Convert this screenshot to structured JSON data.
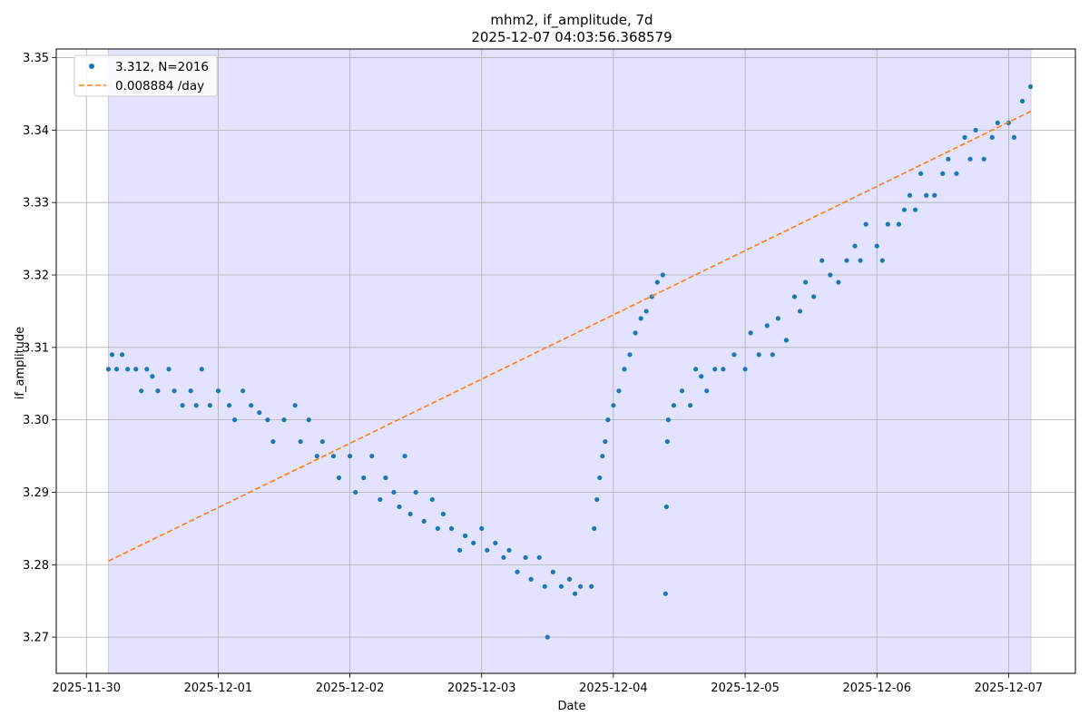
{
  "chart_data": {
    "type": "scatter",
    "title": "mhm2, if_amplitude, 7d",
    "subtitle": "2025-12-07 04:03:56.368579",
    "xlabel": "Date",
    "ylabel": "if_amplitude",
    "x_range_days": [
      "2025-11-29T18:30",
      "2025-12-07T12:10"
    ],
    "ylim": [
      3.265,
      3.3512
    ],
    "grid": true,
    "legend_position": "top-left",
    "shaded_span": [
      "2025-11-30T04:00",
      "2025-12-07T04:04"
    ],
    "colors": {
      "points": "#1f77b4",
      "fit": "#ff7f0e",
      "span": "#e3e3ff",
      "grid": "#b0b0b0"
    },
    "x_ticks": [
      "2025-11-30",
      "2025-12-01",
      "2025-12-02",
      "2025-12-03",
      "2025-12-04",
      "2025-12-05",
      "2025-12-06",
      "2025-12-07"
    ],
    "y_ticks": [
      "3.27",
      "3.28",
      "3.29",
      "3.30",
      "3.31",
      "3.32",
      "3.33",
      "3.34",
      "3.35"
    ],
    "series": [
      {
        "name": "3.312, N=2016",
        "kind": "scatter",
        "points": [
          [
            "2025-11-30T04:00",
            3.307
          ],
          [
            "2025-11-30T04:40",
            3.309
          ],
          [
            "2025-11-30T05:30",
            3.307
          ],
          [
            "2025-11-30T06:30",
            3.309
          ],
          [
            "2025-11-30T07:30",
            3.307
          ],
          [
            "2025-11-30T09:00",
            3.307
          ],
          [
            "2025-11-30T10:00",
            3.304
          ],
          [
            "2025-11-30T11:00",
            3.307
          ],
          [
            "2025-11-30T12:00",
            3.306
          ],
          [
            "2025-11-30T13:00",
            3.304
          ],
          [
            "2025-11-30T15:00",
            3.307
          ],
          [
            "2025-11-30T16:00",
            3.304
          ],
          [
            "2025-11-30T17:30",
            3.302
          ],
          [
            "2025-11-30T19:00",
            3.304
          ],
          [
            "2025-11-30T20:00",
            3.302
          ],
          [
            "2025-11-30T21:00",
            3.307
          ],
          [
            "2025-11-30T22:30",
            3.302
          ],
          [
            "2025-12-01T00:00",
            3.304
          ],
          [
            "2025-12-01T02:00",
            3.302
          ],
          [
            "2025-12-01T03:00",
            3.3
          ],
          [
            "2025-12-01T04:30",
            3.304
          ],
          [
            "2025-12-01T06:00",
            3.302
          ],
          [
            "2025-12-01T07:30",
            3.301
          ],
          [
            "2025-12-01T09:00",
            3.3
          ],
          [
            "2025-12-01T10:00",
            3.297
          ],
          [
            "2025-12-01T12:00",
            3.3
          ],
          [
            "2025-12-01T14:00",
            3.302
          ],
          [
            "2025-12-01T15:00",
            3.297
          ],
          [
            "2025-12-01T16:30",
            3.3
          ],
          [
            "2025-12-01T18:00",
            3.295
          ],
          [
            "2025-12-01T19:00",
            3.297
          ],
          [
            "2025-12-01T21:00",
            3.295
          ],
          [
            "2025-12-01T22:00",
            3.292
          ],
          [
            "2025-12-02T00:00",
            3.295
          ],
          [
            "2025-12-02T01:00",
            3.29
          ],
          [
            "2025-12-02T02:30",
            3.292
          ],
          [
            "2025-12-02T04:00",
            3.295
          ],
          [
            "2025-12-02T05:30",
            3.289
          ],
          [
            "2025-12-02T06:30",
            3.292
          ],
          [
            "2025-12-02T08:00",
            3.29
          ],
          [
            "2025-12-02T09:00",
            3.288
          ],
          [
            "2025-12-02T10:00",
            3.295
          ],
          [
            "2025-12-02T11:00",
            3.287
          ],
          [
            "2025-12-02T12:00",
            3.29
          ],
          [
            "2025-12-02T13:30",
            3.286
          ],
          [
            "2025-12-02T15:00",
            3.289
          ],
          [
            "2025-12-02T16:00",
            3.285
          ],
          [
            "2025-12-02T17:00",
            3.287
          ],
          [
            "2025-12-02T18:30",
            3.285
          ],
          [
            "2025-12-02T20:00",
            3.282
          ],
          [
            "2025-12-02T21:00",
            3.284
          ],
          [
            "2025-12-02T22:30",
            3.283
          ],
          [
            "2025-12-03T00:00",
            3.285
          ],
          [
            "2025-12-03T01:00",
            3.282
          ],
          [
            "2025-12-03T02:30",
            3.283
          ],
          [
            "2025-12-03T04:00",
            3.281
          ],
          [
            "2025-12-03T05:00",
            3.282
          ],
          [
            "2025-12-03T06:30",
            3.279
          ],
          [
            "2025-12-03T08:00",
            3.281
          ],
          [
            "2025-12-03T09:00",
            3.278
          ],
          [
            "2025-12-03T10:30",
            3.281
          ],
          [
            "2025-12-03T11:30",
            3.277
          ],
          [
            "2025-12-03T12:00",
            3.27
          ],
          [
            "2025-12-03T13:00",
            3.279
          ],
          [
            "2025-12-03T14:30",
            3.277
          ],
          [
            "2025-12-03T16:00",
            3.278
          ],
          [
            "2025-12-03T17:00",
            3.276
          ],
          [
            "2025-12-03T18:00",
            3.277
          ],
          [
            "2025-12-03T20:00",
            3.277
          ],
          [
            "2025-12-03T20:30",
            3.285
          ],
          [
            "2025-12-03T21:00",
            3.289
          ],
          [
            "2025-12-03T21:30",
            3.292
          ],
          [
            "2025-12-03T22:00",
            3.295
          ],
          [
            "2025-12-03T22:30",
            3.297
          ],
          [
            "2025-12-03T23:00",
            3.3
          ],
          [
            "2025-12-04T00:00",
            3.302
          ],
          [
            "2025-12-04T01:00",
            3.304
          ],
          [
            "2025-12-04T02:00",
            3.307
          ],
          [
            "2025-12-04T03:00",
            3.309
          ],
          [
            "2025-12-04T04:00",
            3.312
          ],
          [
            "2025-12-04T05:00",
            3.314
          ],
          [
            "2025-12-04T06:00",
            3.315
          ],
          [
            "2025-12-04T07:00",
            3.317
          ],
          [
            "2025-12-04T08:00",
            3.319
          ],
          [
            "2025-12-04T09:00",
            3.32
          ],
          [
            "2025-12-04T09:30",
            3.276
          ],
          [
            "2025-12-04T09:40",
            3.288
          ],
          [
            "2025-12-04T09:50",
            3.297
          ],
          [
            "2025-12-04T10:00",
            3.3
          ],
          [
            "2025-12-04T11:00",
            3.302
          ],
          [
            "2025-12-04T12:30",
            3.304
          ],
          [
            "2025-12-04T14:00",
            3.302
          ],
          [
            "2025-12-04T15:00",
            3.307
          ],
          [
            "2025-12-04T16:00",
            3.306
          ],
          [
            "2025-12-04T17:00",
            3.304
          ],
          [
            "2025-12-04T18:30",
            3.307
          ],
          [
            "2025-12-04T20:00",
            3.307
          ],
          [
            "2025-12-04T22:00",
            3.309
          ],
          [
            "2025-12-05T00:00",
            3.307
          ],
          [
            "2025-12-05T01:00",
            3.312
          ],
          [
            "2025-12-05T02:30",
            3.309
          ],
          [
            "2025-12-05T04:00",
            3.313
          ],
          [
            "2025-12-05T05:00",
            3.309
          ],
          [
            "2025-12-05T06:00",
            3.314
          ],
          [
            "2025-12-05T07:30",
            3.311
          ],
          [
            "2025-12-05T09:00",
            3.317
          ],
          [
            "2025-12-05T10:00",
            3.315
          ],
          [
            "2025-12-05T11:00",
            3.319
          ],
          [
            "2025-12-05T12:30",
            3.317
          ],
          [
            "2025-12-05T14:00",
            3.322
          ],
          [
            "2025-12-05T15:30",
            3.32
          ],
          [
            "2025-12-05T17:00",
            3.319
          ],
          [
            "2025-12-05T18:30",
            3.322
          ],
          [
            "2025-12-05T20:00",
            3.324
          ],
          [
            "2025-12-05T21:00",
            3.322
          ],
          [
            "2025-12-05T22:00",
            3.327
          ],
          [
            "2025-12-06T00:00",
            3.324
          ],
          [
            "2025-12-06T01:00",
            3.322
          ],
          [
            "2025-12-06T02:00",
            3.327
          ],
          [
            "2025-12-06T04:00",
            3.327
          ],
          [
            "2025-12-06T05:00",
            3.329
          ],
          [
            "2025-12-06T06:00",
            3.331
          ],
          [
            "2025-12-06T07:00",
            3.329
          ],
          [
            "2025-12-06T08:00",
            3.334
          ],
          [
            "2025-12-06T09:00",
            3.331
          ],
          [
            "2025-12-06T10:30",
            3.331
          ],
          [
            "2025-12-06T12:00",
            3.334
          ],
          [
            "2025-12-06T13:00",
            3.336
          ],
          [
            "2025-12-06T14:30",
            3.334
          ],
          [
            "2025-12-06T16:00",
            3.339
          ],
          [
            "2025-12-06T17:00",
            3.336
          ],
          [
            "2025-12-06T18:00",
            3.34
          ],
          [
            "2025-12-06T19:30",
            3.336
          ],
          [
            "2025-12-06T21:00",
            3.339
          ],
          [
            "2025-12-06T22:00",
            3.341
          ],
          [
            "2025-12-07T00:00",
            3.341
          ],
          [
            "2025-12-07T01:00",
            3.339
          ],
          [
            "2025-12-07T02:30",
            3.344
          ],
          [
            "2025-12-07T04:00",
            3.346
          ]
        ]
      },
      {
        "name": "0.008884 /day",
        "kind": "line",
        "points": [
          [
            "2025-11-30T04:00",
            3.2805
          ],
          [
            "2025-12-07T04:04",
            3.3426
          ]
        ]
      }
    ]
  }
}
